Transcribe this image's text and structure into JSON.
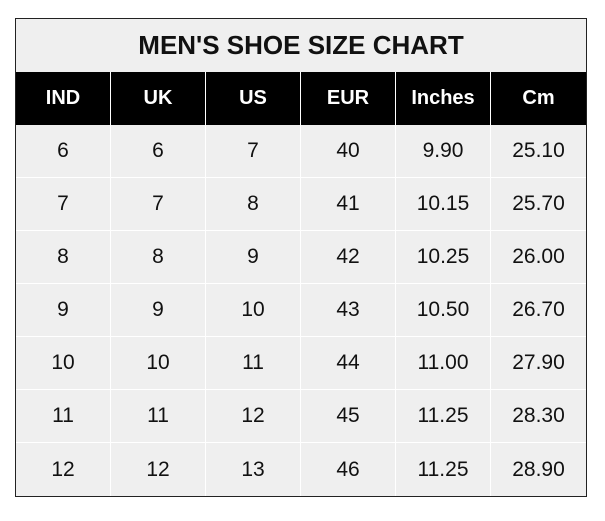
{
  "title": "MEN'S SHOE SIZE CHART",
  "columns": [
    "IND",
    "UK",
    "US",
    "EUR",
    "Inches",
    "Cm"
  ],
  "rows": [
    [
      "6",
      "6",
      "7",
      "40",
      "9.90",
      "25.10"
    ],
    [
      "7",
      "7",
      "8",
      "41",
      "10.15",
      "25.70"
    ],
    [
      "8",
      "8",
      "9",
      "42",
      "10.25",
      "26.00"
    ],
    [
      "9",
      "9",
      "10",
      "43",
      "10.50",
      "26.70"
    ],
    [
      "10",
      "10",
      "11",
      "44",
      "11.00",
      "27.90"
    ],
    [
      "11",
      "11",
      "12",
      "45",
      "11.25",
      "28.30"
    ],
    [
      "12",
      "12",
      "13",
      "46",
      "11.25",
      "28.90"
    ]
  ],
  "colors": {
    "header_bg": "#000000",
    "header_text": "#ffffff",
    "cell_bg": "#efefef",
    "grid": "#ffffff"
  }
}
